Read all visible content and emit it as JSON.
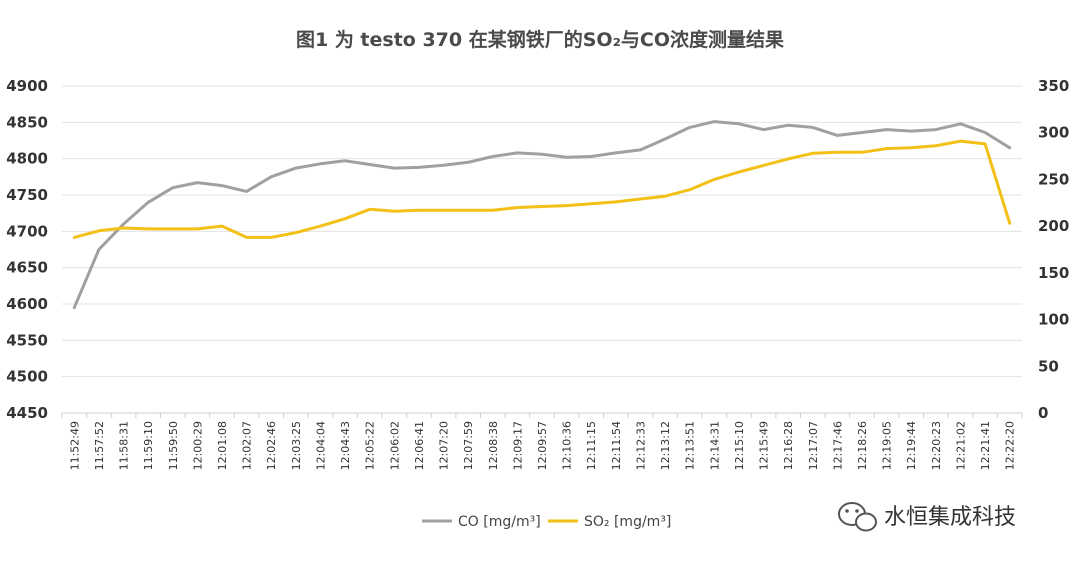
{
  "chart_data": {
    "type": "line",
    "title": "图1 为 testo 370 在某钢铁厂的SO₂与CO浓度测量结果",
    "x": [
      "11:52:49",
      "11:57:52",
      "11:58:31",
      "11:59:10",
      "11:59:50",
      "12:00:29",
      "12:01:08",
      "12:02:07",
      "12:02:46",
      "12:03:25",
      "12:04:04",
      "12:04:43",
      "12:05:22",
      "12:06:02",
      "12:06:41",
      "12:07:20",
      "12:07:59",
      "12:08:38",
      "12:09:17",
      "12:09:57",
      "12:10:36",
      "12:11:15",
      "12:11:54",
      "12:12:33",
      "12:13:12",
      "12:13:51",
      "12:14:31",
      "12:15:10",
      "12:15:49",
      "12:16:28",
      "12:17:07",
      "12:17:46",
      "12:18:26",
      "12:19:05",
      "12:19:44",
      "12:20:23",
      "12:21:02",
      "12:21:41",
      "12:22:20"
    ],
    "y_left": {
      "min": 4450,
      "max": 4900,
      "ticks": [
        4450,
        4500,
        4550,
        4600,
        4650,
        4700,
        4750,
        4800,
        4850,
        4900
      ]
    },
    "y_right": {
      "min": 0,
      "max": 350,
      "ticks": [
        0,
        50,
        100,
        150,
        200,
        250,
        300,
        350
      ]
    },
    "grid": true,
    "legend_position": "bottom",
    "series": [
      {
        "name": "CO [mg/m³]",
        "axis": "left",
        "color": "#a0a0a0",
        "values": [
          4595,
          4675,
          4710,
          4740,
          4760,
          4767,
          4763,
          4755,
          4775,
          4787,
          4793,
          4797,
          4792,
          4787,
          4788,
          4791,
          4795,
          4803,
          4808,
          4806,
          4802,
          4803,
          4808,
          4812,
          4827,
          4843,
          4851,
          4848,
          4840,
          4846,
          4843,
          4832,
          4836,
          4840,
          4838,
          4840,
          4848,
          4836,
          4815
        ]
      },
      {
        "name": "SO₂ [mg/m³]",
        "axis": "right",
        "color": "#f2c017",
        "values": [
          188,
          195,
          198,
          197,
          197,
          197,
          200,
          188,
          188,
          193,
          200,
          208,
          218,
          216,
          217,
          217,
          217,
          217,
          220,
          221,
          222,
          224,
          226,
          229,
          232,
          239,
          250,
          258,
          265,
          272,
          278,
          279,
          279,
          283,
          284,
          286,
          291,
          288,
          203
        ]
      }
    ]
  },
  "watermark": {
    "text": "水恒集成科技",
    "icon": "wechat-icon"
  }
}
